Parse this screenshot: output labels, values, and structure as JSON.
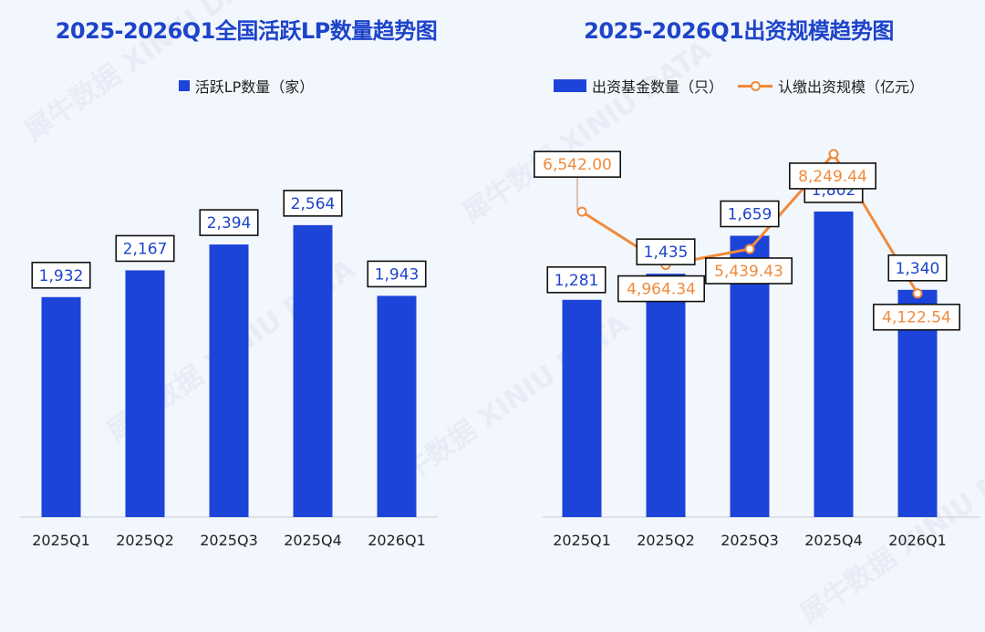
{
  "watermark": "犀牛数据 XINIU DATA",
  "colors": {
    "bar": "#1d44d9",
    "line": "#f08a3c",
    "title": "#1d44c9"
  },
  "left": {
    "title": "2025-2026Q1全国活跃LP数量趋势图",
    "legend": "活跃LP数量（家）"
  },
  "right": {
    "title": "2025-2026Q1出资规模趋势图",
    "legend_bar": "出资基金数量（只）",
    "legend_line": "认缴出资规模（亿元）"
  },
  "chart_data": [
    {
      "type": "bar",
      "title": "2025-2026Q1全国活跃LP数量趋势图",
      "categories": [
        "2025Q1",
        "2025Q2",
        "2025Q3",
        "2025Q4",
        "2026Q1"
      ],
      "series": [
        {
          "name": "活跃LP数量（家）",
          "values": [
            1932,
            2167,
            2394,
            2564,
            1943
          ],
          "labels": [
            "1,932",
            "2,167",
            "2,394",
            "2,564",
            "1,943"
          ]
        }
      ],
      "ylim": [
        0,
        3500
      ],
      "grid": false,
      "legend": "top-center"
    },
    {
      "type": "bar",
      "title": "2025-2026Q1出资规模趋势图",
      "categories": [
        "2025Q1",
        "2025Q2",
        "2025Q3",
        "2025Q4",
        "2026Q1"
      ],
      "series": [
        {
          "name": "出资基金数量（只）",
          "type": "bar",
          "values": [
            1281,
            1435,
            1659,
            1802,
            1340
          ],
          "labels": [
            "1,281",
            "1,435",
            "1,659",
            "1,802",
            "1,340"
          ]
        },
        {
          "name": "认缴出资规模（亿元）",
          "type": "line",
          "values": [
            6542.0,
            4964.34,
            5439.43,
            8249.44,
            4122.54
          ],
          "labels": [
            "6,542.00",
            "4,964.34",
            "5,439.43",
            "8,249.44",
            "4,122.54"
          ]
        }
      ],
      "ylim_bar": [
        0,
        2350
      ],
      "ylim_line": [
        -2500,
        9300
      ],
      "grid": false,
      "legend": "top-center"
    }
  ]
}
